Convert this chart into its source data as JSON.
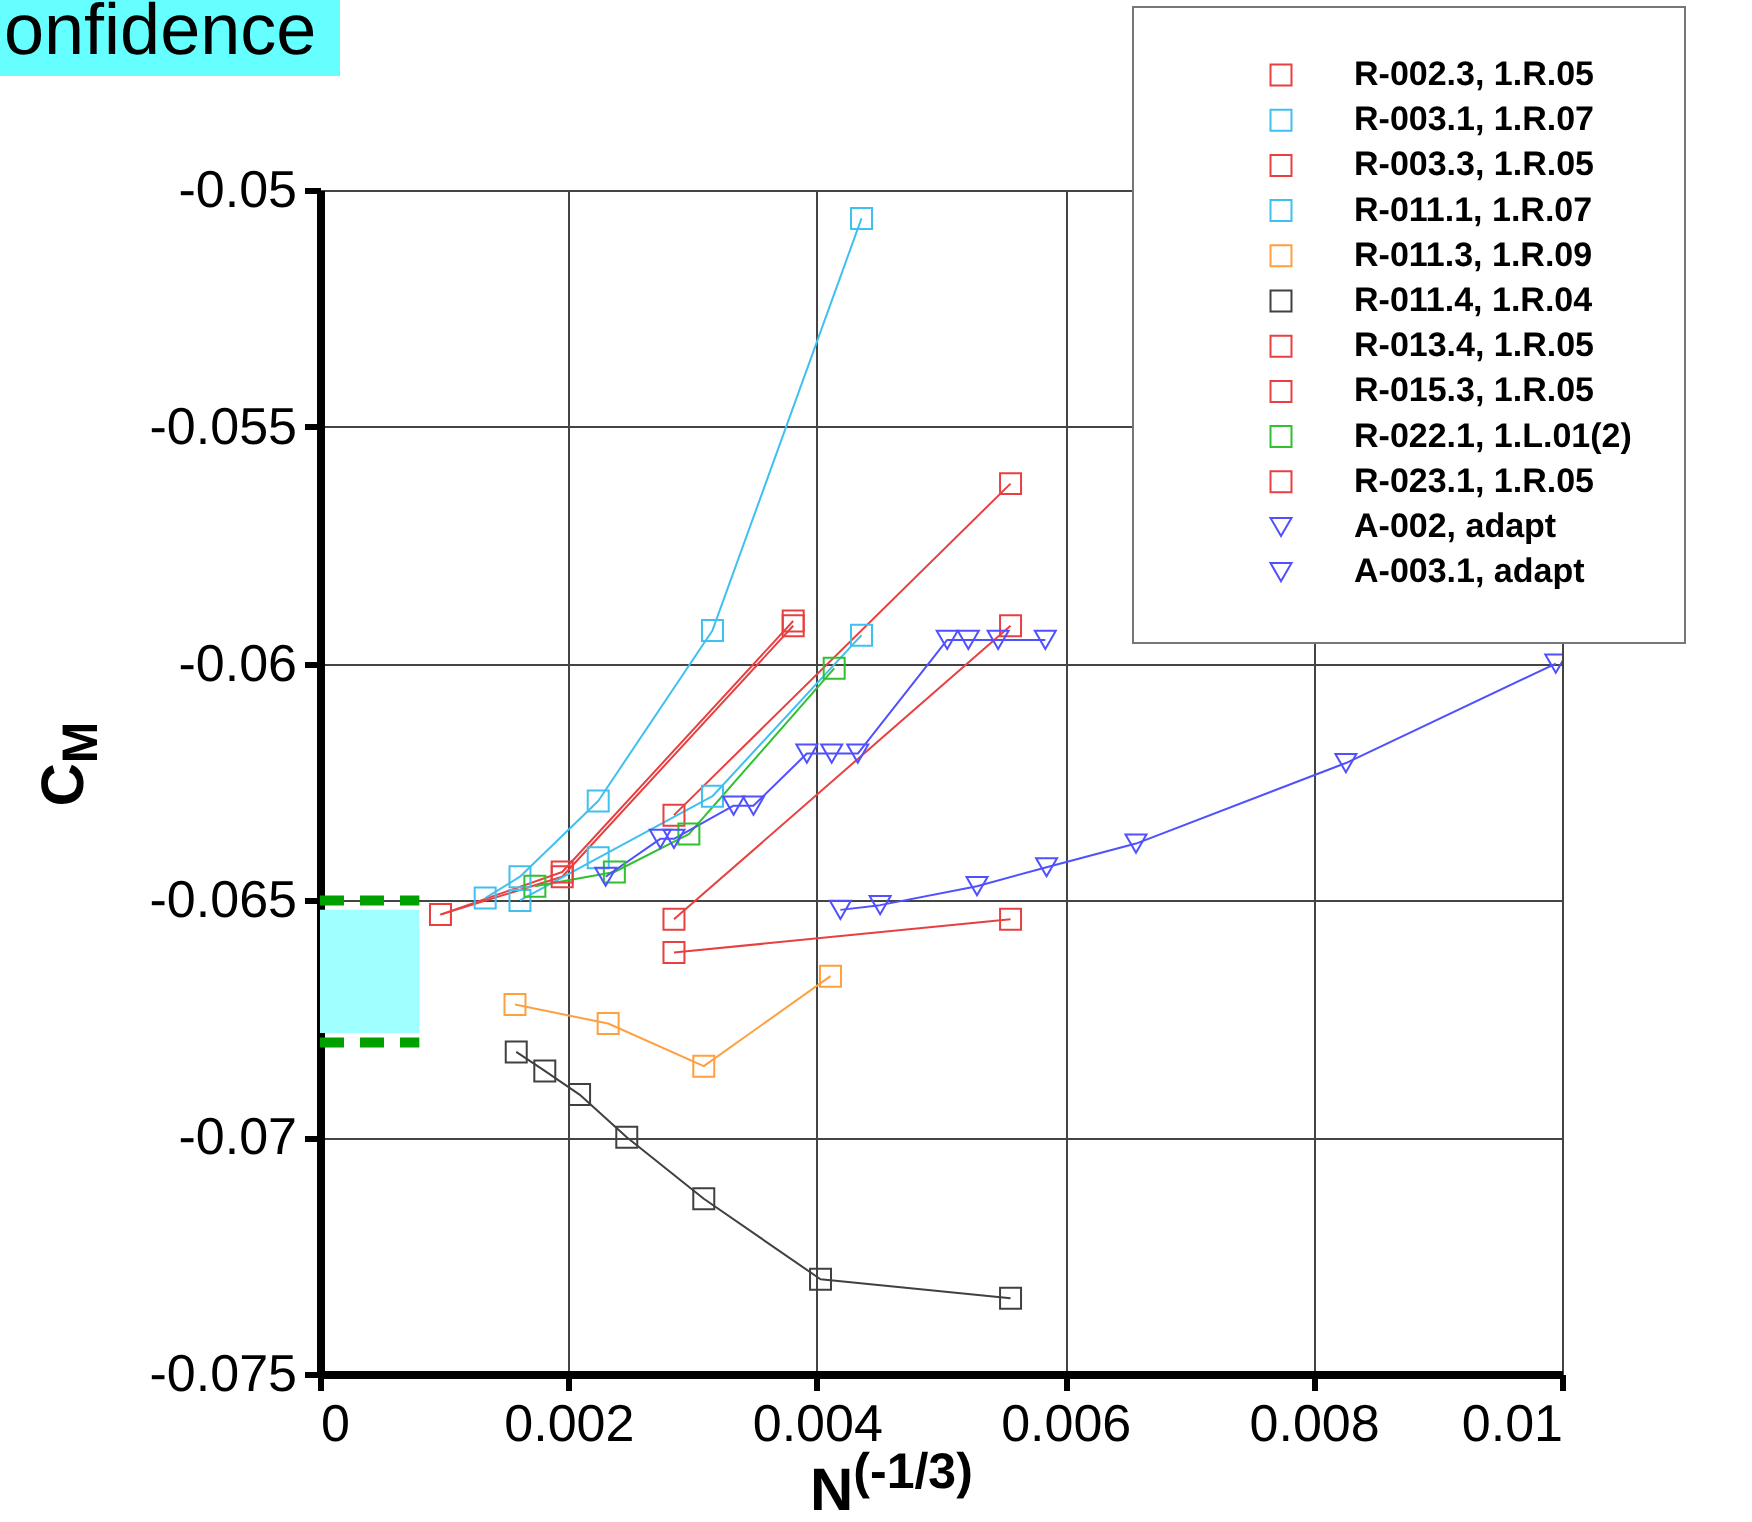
{
  "chart_data": {
    "type": "line",
    "xlabel": "N$^{(-1/3)}$",
    "ylabel": "C$_{M}$",
    "xlim": [
      0,
      0.01
    ],
    "xticks": [
      0,
      0.002,
      0.004,
      0.006,
      0.008,
      0.01
    ],
    "ylim": [
      -0.075,
      -0.05
    ],
    "yticks": [
      -0.075,
      -0.07,
      -0.065,
      -0.06,
      -0.055,
      -0.05
    ],
    "grid": true,
    "legend": "top right",
    "line_style": "solid",
    "bands": [
      {
        "axis": "y",
        "from": -0.0678,
        "to": -0.0652,
        "color": "#a0ffff"
      }
    ],
    "annotations": [
      "onfidence"
    ],
    "series": [
      {
        "color": "#00a000",
        "marker": "none",
        "line_style": "dashed",
        "x": [
          0,
          0.0008
        ],
        "values": [
          -0.065,
          -0.065
        ]
      },
      {
        "color": "#00a000",
        "marker": "none",
        "line_style": "dashed",
        "x": [
          0,
          0.0008
        ],
        "values": [
          -0.068,
          -0.068
        ]
      },
      {
        "name": "R-002.3, 1.R.05",
        "color": "#e84040",
        "marker": "square",
        "x": [
          0.00097,
          0.00195,
          0.00381
        ],
        "values": [
          -0.0653,
          -0.0644,
          -0.0591
        ]
      },
      {
        "name": "R-003.1, 1.R.07",
        "color": "#40c0f0",
        "marker": "square",
        "x": [
          0.00133,
          0.00161,
          0.00224,
          0.00316,
          0.00436
        ],
        "values": [
          -0.06495,
          -0.0645,
          -0.0629,
          -0.0593,
          -0.0506
        ]
      },
      {
        "name": "R-003.3, 1.R.05",
        "color": "#e84040",
        "marker": "square",
        "x": [
          0.00097,
          0.00195,
          0.00381
        ],
        "values": [
          -0.0653,
          -0.0645,
          -0.0592
        ]
      },
      {
        "name": "R-011.1, 1.R.07",
        "color": "#40c0f0",
        "marker": "square",
        "x": [
          0.00161,
          0.00224,
          0.00316,
          0.00436
        ],
        "values": [
          -0.065,
          -0.0641,
          -0.0628,
          -0.0594
        ]
      },
      {
        "name": "R-011.3, 1.R.09",
        "color": "#ffa040",
        "marker": "square",
        "x": [
          0.00157,
          0.00232,
          0.00309,
          0.00411
        ],
        "values": [
          -0.0672,
          -0.0676,
          -0.0685,
          -0.0666
        ]
      },
      {
        "name": "R-011.4, 1.R.04",
        "color": "#404040",
        "marker": "square",
        "x": [
          0.00158,
          0.00181,
          0.00209,
          0.00247,
          0.00309,
          0.00403,
          0.00556
        ],
        "values": [
          -0.0682,
          -0.0686,
          -0.0691,
          -0.07,
          -0.0713,
          -0.073,
          -0.0734
        ]
      },
      {
        "name": "R-013.4, 1.R.05",
        "color": "#e84040",
        "marker": "square",
        "x": [
          0.00285,
          0.00556
        ],
        "values": [
          -0.0632,
          -0.0562
        ]
      },
      {
        "name": "R-015.3, 1.R.05",
        "color": "#e84040",
        "marker": "square",
        "x": [
          0.00285,
          0.00556
        ],
        "values": [
          -0.0654,
          -0.0592
        ]
      },
      {
        "name": "R-022.1, 1.L.01(2)",
        "color": "#30c030",
        "marker": "square",
        "x": [
          0.00173,
          0.00237,
          0.00297,
          0.00414
        ],
        "values": [
          -0.0647,
          -0.0644,
          -0.0636,
          -0.0601
        ]
      },
      {
        "name": "R-023.1, 1.R.05",
        "color": "#e84040",
        "marker": "square",
        "x": [
          0.00285,
          0.00556
        ],
        "values": [
          -0.0661,
          -0.0654
        ]
      },
      {
        "name": "A-002, adapt",
        "color": "#5050ff",
        "marker": "triangle",
        "x": [
          0.0023,
          0.00274,
          0.00285,
          0.00333,
          0.00349,
          0.00392,
          0.00412,
          0.00433,
          0.00505,
          0.00522,
          0.00546,
          0.00584
        ],
        "values": [
          -0.0645,
          -0.0637,
          -0.0637,
          -0.063,
          -0.063,
          -0.0619,
          -0.0619,
          -0.0619,
          -0.0595,
          -0.0595,
          -0.0595,
          -0.0595
        ]
      },
      {
        "name": "A-003.1, adapt",
        "color": "#5050ff",
        "marker": "triangle",
        "x": [
          0.00419,
          0.00451,
          0.00529,
          0.00585,
          0.00657,
          0.00826,
          0.00995
        ],
        "values": [
          -0.0652,
          -0.0651,
          -0.0647,
          -0.0643,
          -0.0638,
          -0.0621,
          -0.06
        ]
      }
    ]
  }
}
